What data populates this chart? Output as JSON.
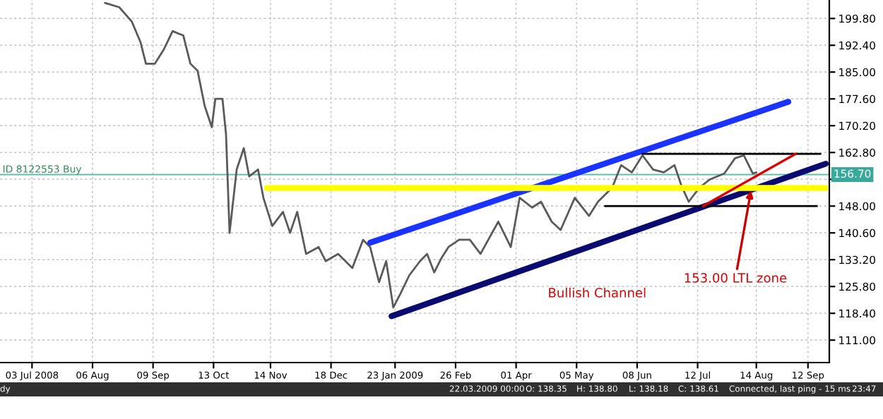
{
  "chart_data": {
    "type": "line",
    "x": [
      "2008-08-13",
      "2008-08-21",
      "2008-08-28",
      "2008-09-02",
      "2008-09-05",
      "2008-09-10",
      "2008-09-15",
      "2008-09-20",
      "2008-09-26",
      "2008-09-30",
      "2008-10-04",
      "2008-10-08",
      "2008-10-12",
      "2008-10-14",
      "2008-10-18",
      "2008-10-20",
      "2008-10-22",
      "2008-10-26",
      "2008-10-30",
      "2008-11-02",
      "2008-11-07",
      "2008-11-10",
      "2008-11-15",
      "2008-11-21",
      "2008-11-25",
      "2008-11-29",
      "2008-12-04",
      "2008-12-11",
      "2008-12-15",
      "2008-12-22",
      "2008-12-30",
      "2009-01-05",
      "2009-01-09",
      "2009-01-14",
      "2009-01-18",
      "2009-01-22",
      "2009-01-26",
      "2009-01-31",
      "2009-02-06",
      "2009-02-10",
      "2009-02-14",
      "2009-02-18",
      "2009-02-22",
      "2009-02-28",
      "2009-03-06",
      "2009-03-12",
      "2009-03-22",
      "2009-03-29",
      "2009-04-03",
      "2009-04-10",
      "2009-04-15",
      "2009-04-21",
      "2009-04-26",
      "2009-05-04",
      "2009-05-12",
      "2009-05-17",
      "2009-05-25",
      "2009-05-30",
      "2009-06-05",
      "2009-06-11",
      "2009-06-17",
      "2009-06-23",
      "2009-06-29",
      "2009-07-03",
      "2009-07-07",
      "2009-07-13",
      "2009-07-19",
      "2009-07-27",
      "2009-08-02",
      "2009-08-07",
      "2009-08-12",
      "2009-08-14"
    ],
    "series": [
      {
        "color": "#5a5a5a",
        "values": [
          204.1,
          202.9,
          199.0,
          193.2,
          187.3,
          187.3,
          191.2,
          196.3,
          195.1,
          187.3,
          185.4,
          175.7,
          169.8,
          177.6,
          177.6,
          167.9,
          140.6,
          158.1,
          164.0,
          156.2,
          158.1,
          150.3,
          142.5,
          146.4,
          140.6,
          146.4,
          134.8,
          136.7,
          132.8,
          134.8,
          130.9,
          138.7,
          136.7,
          127.0,
          132.8,
          120.0,
          123.8,
          128.9,
          132.8,
          134.8,
          129.7,
          133.6,
          136.7,
          138.7,
          138.7,
          134.8,
          143.7,
          136.7,
          150.3,
          147.6,
          149.2,
          143.7,
          141.4,
          150.3,
          145.3,
          149.2,
          153.1,
          159.3,
          157.3,
          162.0,
          158.1,
          157.3,
          159.3,
          153.5,
          149.2,
          153.1,
          155.4,
          157.0,
          161.2,
          162.0,
          157.0,
          157.3
        ]
      },
      {
        "color": "#1a33ff",
        "x": [
          "2009-01-09",
          "2009-09-01"
        ],
        "values": [
          137.9,
          176.8
        ]
      },
      {
        "color": "#0a0a70",
        "x": [
          "2009-01-21",
          "2009-09-22"
        ],
        "values": [
          117.6,
          159.7
        ]
      },
      {
        "color": "#ffff00",
        "x": [
          "2008-11-12",
          "2009-09-22"
        ],
        "values": [
          153.0,
          153.0
        ]
      },
      {
        "color": "#000000",
        "x": [
          "2009-06-11",
          "2009-09-19"
        ],
        "values": [
          162.4,
          162.4
        ]
      },
      {
        "color": "#000000",
        "x": [
          "2009-05-21",
          "2009-09-17"
        ],
        "values": [
          148.0,
          148.0
        ]
      },
      {
        "color": "#dd0000",
        "x": [
          "2009-07-15",
          "2009-09-05"
        ],
        "values": [
          148.0,
          162.4
        ]
      }
    ],
    "xlim": [
      "2008-06-15",
      "2009-09-24"
    ],
    "xticks": [
      {
        "value": "2008-07-03",
        "label": "03 Jul 2008"
      },
      {
        "value": "2008-08-06",
        "label": "06 Aug"
      },
      {
        "value": "2008-09-09",
        "label": "09 Sep"
      },
      {
        "value": "2008-10-13",
        "label": "13 Oct"
      },
      {
        "value": "2008-11-14",
        "label": "14 Nov"
      },
      {
        "value": "2008-12-18",
        "label": "18 Dec"
      },
      {
        "value": "2009-01-23",
        "label": "23 Jan 2009"
      },
      {
        "value": "2009-02-26",
        "label": "26 Feb"
      },
      {
        "value": "2009-04-01",
        "label": "01 Apr"
      },
      {
        "value": "2009-05-05",
        "label": "05 May"
      },
      {
        "value": "2009-06-08",
        "label": "08 Jun"
      },
      {
        "value": "2009-07-12",
        "label": "12 Jul"
      },
      {
        "value": "2009-08-14",
        "label": "14 Aug"
      },
      {
        "value": "2009-09-12",
        "label": "12 Sep"
      }
    ],
    "ylim": [
      104.8,
      204.9
    ],
    "yticks": [
      {
        "value": 111.0,
        "label": "111.00"
      },
      {
        "value": 118.4,
        "label": "118.40"
      },
      {
        "value": 125.8,
        "label": "125.80"
      },
      {
        "value": 133.2,
        "label": "133.20"
      },
      {
        "value": 140.6,
        "label": "140.60"
      },
      {
        "value": 148.0,
        "label": "148.00"
      },
      {
        "value": 155.4,
        "label": null
      },
      {
        "value": 162.8,
        "label": "162.80"
      },
      {
        "value": 170.2,
        "label": "170.20"
      },
      {
        "value": 177.6,
        "label": "177.60"
      },
      {
        "value": 185.0,
        "label": "185.00"
      },
      {
        "value": 192.4,
        "label": "192.40"
      },
      {
        "value": 199.8,
        "label": "199.80"
      }
    ],
    "grid": true,
    "ref_lines": [
      {
        "axis": "y",
        "value": 156.7,
        "label": "ID 8122553 Buy",
        "color": "#66bbaa"
      }
    ],
    "annotations": [
      {
        "text": "153.00 LTL zone",
        "x": "2009-08-11",
        "y": 152.3
      },
      {
        "text": "156.70",
        "y": 156.7
      },
      "Bullish Channel",
      "dy",
      "22.03.2009 00:00",
      "O: 138.35",
      "H: 138.80",
      "L: 138.18",
      "C: 138.61",
      "Connected, last ping - 15 ms",
      "23:47"
    ]
  }
}
